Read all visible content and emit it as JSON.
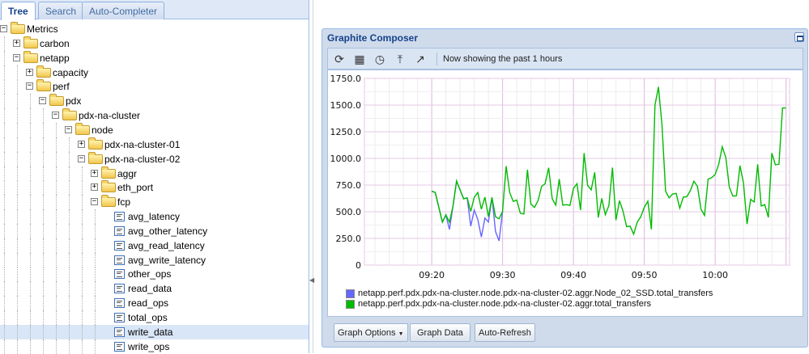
{
  "tabs": [
    {
      "label": "Tree",
      "active": true
    },
    {
      "label": "Search",
      "active": false
    },
    {
      "label": "Auto-Completer",
      "active": false
    }
  ],
  "tree": [
    {
      "label": "Metrics",
      "depth": 0,
      "type": "folder",
      "expanded": true
    },
    {
      "label": "carbon",
      "depth": 1,
      "type": "folder",
      "expanded": false
    },
    {
      "label": "netapp",
      "depth": 1,
      "type": "folder",
      "expanded": true
    },
    {
      "label": "capacity",
      "depth": 2,
      "type": "folder",
      "expanded": false
    },
    {
      "label": "perf",
      "depth": 2,
      "type": "folder",
      "expanded": true
    },
    {
      "label": "pdx",
      "depth": 3,
      "type": "folder",
      "expanded": true
    },
    {
      "label": "pdx-na-cluster",
      "depth": 4,
      "type": "folder",
      "expanded": true
    },
    {
      "label": "node",
      "depth": 5,
      "type": "folder",
      "expanded": true
    },
    {
      "label": "pdx-na-cluster-01",
      "depth": 6,
      "type": "folder",
      "expanded": false
    },
    {
      "label": "pdx-na-cluster-02",
      "depth": 6,
      "type": "folder",
      "expanded": true
    },
    {
      "label": "aggr",
      "depth": 7,
      "type": "folder",
      "expanded": false
    },
    {
      "label": "eth_port",
      "depth": 7,
      "type": "folder",
      "expanded": false
    },
    {
      "label": "fcp",
      "depth": 7,
      "type": "folder",
      "expanded": true
    },
    {
      "label": "avg_latency",
      "depth": 8,
      "type": "metric"
    },
    {
      "label": "avg_other_latency",
      "depth": 8,
      "type": "metric"
    },
    {
      "label": "avg_read_latency",
      "depth": 8,
      "type": "metric"
    },
    {
      "label": "avg_write_latency",
      "depth": 8,
      "type": "metric"
    },
    {
      "label": "other_ops",
      "depth": 8,
      "type": "metric"
    },
    {
      "label": "read_data",
      "depth": 8,
      "type": "metric"
    },
    {
      "label": "read_ops",
      "depth": 8,
      "type": "metric"
    },
    {
      "label": "total_ops",
      "depth": 8,
      "type": "metric"
    },
    {
      "label": "write_data",
      "depth": 8,
      "type": "metric",
      "selected": true
    },
    {
      "label": "write_ops",
      "depth": 8,
      "type": "metric"
    }
  ],
  "composer": {
    "title": "Graphite Composer",
    "toolbar": {
      "icons": [
        "refresh-icon",
        "calendar-icon",
        "clock-icon",
        "upload-icon",
        "share-icon"
      ],
      "status": "Now showing the past 1 hours"
    },
    "buttons": {
      "graph_options": "Graph Options",
      "graph_data": "Graph Data",
      "auto_refresh": "Auto-Refresh"
    }
  },
  "chart_data": {
    "type": "line",
    "grid": true,
    "legend": "bottom",
    "xlim": [
      "09:10:30",
      "10:10:30"
    ],
    "ylim": [
      0,
      1750
    ],
    "yticks": [
      "0",
      "250.0",
      "500.0",
      "750.0",
      "1000.0",
      "1250.0",
      "1500.0",
      "1750.0"
    ],
    "xticks": [
      "09:20",
      "09:30",
      "09:40",
      "09:50",
      "10:00"
    ],
    "x_start": "09:20:00",
    "x_step_seconds": 30,
    "series": [
      {
        "name": "netapp.perf.pdx.pdx-na-cluster.node.pdx-na-cluster-02.aggr.Node_02_SSD.total_transfers",
        "color": "#6666ff",
        "values": [
          693,
          680,
          540,
          403,
          471,
          335,
          554,
          788,
          705,
          622,
          630,
          365,
          516,
          428,
          264,
          441,
          403,
          635,
          315,
          227,
          504
        ]
      },
      {
        "name": "netapp.perf.pdx.pdx-na-cluster.node.pdx-na-cluster-02.aggr.total_transfers",
        "color": "#00bb00",
        "values": [
          693,
          680,
          540,
          403,
          471,
          403,
          554,
          788,
          705,
          622,
          630,
          504,
          635,
          680,
          524,
          637,
          453,
          635,
          453,
          433,
          504,
          927,
          680,
          597,
          610,
          486,
          479,
          894,
          572,
          541,
          604,
          738,
          763,
          912,
          622,
          562,
          806,
          562,
          567,
          559,
          718,
          763,
          516,
          1050,
          748,
          705,
          869,
          446,
          625,
          473,
          559,
          914,
          421,
          604,
          504,
          360,
          365,
          290,
          403,
          453,
          541,
          599,
          335,
          1499,
          1670,
          1310,
          693,
          630,
          667,
          672,
          534,
          637,
          642,
          698,
          786,
          738,
          524,
          466,
          806,
          819,
          849,
          945,
          1108,
          1008,
          730,
          647,
          650,
          932,
          768,
          385,
          617,
          592,
          945,
          554,
          567,
          448,
          1050,
          940,
          945,
          1473,
          1473
        ]
      }
    ]
  }
}
